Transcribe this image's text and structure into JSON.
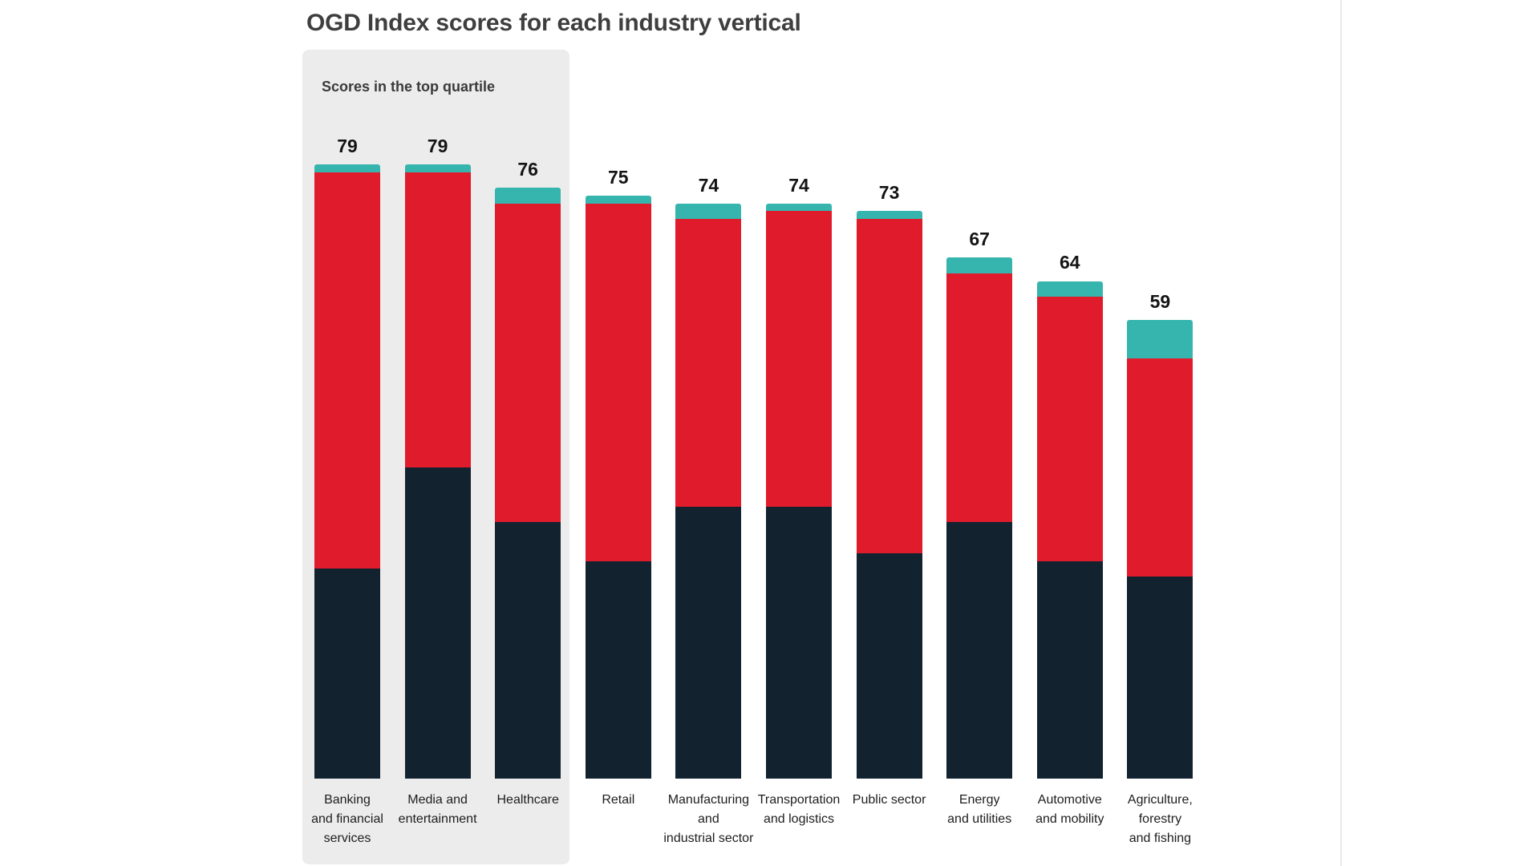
{
  "chart_data": {
    "type": "bar",
    "stacked": true,
    "title": "OGD Index scores for each industry vertical",
    "annotation": {
      "label": "Scores in the top quartile",
      "covers_categories": [
        "Banking and financial services",
        "Media and entertainment",
        "Healthcare"
      ],
      "panel_color": "#ececec"
    },
    "categories": [
      "Banking and financial services",
      "Media and entertainment",
      "Healthcare",
      "Retail",
      "Manufacturing and industrial sector",
      "Transportation and logistics",
      "Public sector",
      "Energy and utilities",
      "Automotive and mobility",
      "Agriculture, forestry and fishing"
    ],
    "category_label_lines": [
      [
        "Banking",
        "and financial",
        "services"
      ],
      [
        "Media and",
        "entertainment"
      ],
      [
        "Healthcare"
      ],
      [
        "Retail"
      ],
      [
        "Manufacturing",
        "and",
        "industrial sector"
      ],
      [
        "Transportation",
        "and logistics"
      ],
      [
        "Public sector"
      ],
      [
        "Energy",
        "and utilities"
      ],
      [
        "Automotive",
        "and mobility"
      ],
      [
        "Agriculture,",
        "forestry",
        "and fishing"
      ]
    ],
    "series": [
      {
        "name": "navy_bottom_segment",
        "color": "#12222f",
        "values": [
          27,
          40,
          33,
          28,
          35,
          35,
          29,
          33,
          28,
          26
        ]
      },
      {
        "name": "red_middle_segment",
        "color": "#e01b2c",
        "values": [
          51,
          38,
          41,
          46,
          37,
          38,
          43,
          32,
          34,
          28
        ]
      },
      {
        "name": "teal_top_segment",
        "color": "#35b5ae",
        "values": [
          1,
          1,
          2,
          1,
          2,
          1,
          1,
          2,
          2,
          5
        ]
      }
    ],
    "totals": [
      79,
      79,
      76,
      75,
      74,
      74,
      73,
      67,
      64,
      59
    ],
    "ylim": [
      0,
      100
    ],
    "axes_visible": false,
    "gridlines": false,
    "legend": "none",
    "value_labels": "total shown above each bar"
  },
  "colors": {
    "background": "#ffffff",
    "title_text": "#3e3e3e",
    "annotation_text": "#3a3a3a",
    "value_label_text": "#141414",
    "category_label_text": "#1d1d1d",
    "right_edge_line": "#e9e9e9"
  }
}
